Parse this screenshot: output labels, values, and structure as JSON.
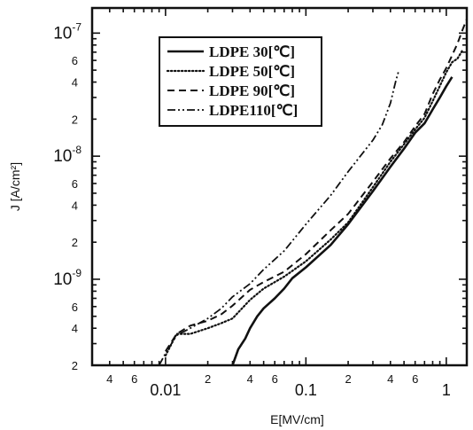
{
  "chart_data": {
    "type": "line",
    "x_scale": "log",
    "y_scale": "log",
    "xlim": [
      0.003,
      1.4
    ],
    "ylim": [
      2e-10,
      1.6e-07
    ],
    "xlabel": "E[MV/cm]",
    "ylabel": "J [A/cm²]",
    "legend_position": "top-left",
    "grid": false,
    "x_ticks": [
      {
        "value": 0.004,
        "label": "4"
      },
      {
        "value": 0.006,
        "label": "6"
      },
      {
        "value": 0.01,
        "label": "0.01"
      },
      {
        "value": 0.02,
        "label": "2"
      },
      {
        "value": 0.04,
        "label": "4"
      },
      {
        "value": 0.06,
        "label": "6"
      },
      {
        "value": 0.1,
        "label": "0.1"
      },
      {
        "value": 0.2,
        "label": "2"
      },
      {
        "value": 0.4,
        "label": "4"
      },
      {
        "value": 0.6,
        "label": "6"
      },
      {
        "value": 1,
        "label": "1"
      }
    ],
    "y_ticks": [
      {
        "value": 2e-10,
        "label": "2",
        "sup": ""
      },
      {
        "value": 4e-10,
        "label": "4",
        "sup": ""
      },
      {
        "value": 6e-10,
        "label": "6",
        "sup": ""
      },
      {
        "value": 1e-09,
        "label": "10",
        "sup": "-9"
      },
      {
        "value": 2e-09,
        "label": "2",
        "sup": ""
      },
      {
        "value": 4e-09,
        "label": "4",
        "sup": ""
      },
      {
        "value": 6e-09,
        "label": "6",
        "sup": ""
      },
      {
        "value": 1e-08,
        "label": "10",
        "sup": "-8"
      },
      {
        "value": 2e-08,
        "label": "2",
        "sup": ""
      },
      {
        "value": 4e-08,
        "label": "4",
        "sup": ""
      },
      {
        "value": 6e-08,
        "label": "6",
        "sup": ""
      },
      {
        "value": 1e-07,
        "label": "10",
        "sup": "-7"
      }
    ],
    "series": [
      {
        "name": "LDPE 30[℃]",
        "dash": "solid",
        "points": [
          [
            0.03,
            2e-10
          ],
          [
            0.033,
            2.7e-10
          ],
          [
            0.037,
            3.3e-10
          ],
          [
            0.04,
            4e-10
          ],
          [
            0.045,
            5e-10
          ],
          [
            0.05,
            5.8e-10
          ],
          [
            0.06,
            7e-10
          ],
          [
            0.07,
            8.4e-10
          ],
          [
            0.08,
            1.02e-09
          ],
          [
            0.1,
            1.25e-09
          ],
          [
            0.15,
            1.9e-09
          ],
          [
            0.2,
            2.8e-09
          ],
          [
            0.3,
            5.2e-09
          ],
          [
            0.4,
            8.2e-09
          ],
          [
            0.5,
            1.15e-08
          ],
          [
            0.6,
            1.55e-08
          ],
          [
            0.7,
            1.85e-08
          ],
          [
            0.8,
            2.4e-08
          ],
          [
            0.9,
            3e-08
          ],
          [
            1.0,
            3.7e-08
          ],
          [
            1.1,
            4.4e-08
          ]
        ]
      },
      {
        "name": "LDPE 50[℃]",
        "dash": "dotted",
        "points": [
          [
            0.01,
            2.4e-10
          ],
          [
            0.012,
            3.6e-10
          ],
          [
            0.015,
            3.6e-10
          ],
          [
            0.02,
            4e-10
          ],
          [
            0.025,
            4.4e-10
          ],
          [
            0.03,
            4.8e-10
          ],
          [
            0.04,
            6.8e-10
          ],
          [
            0.05,
            8.4e-10
          ],
          [
            0.07,
            1.05e-09
          ],
          [
            0.1,
            1.4e-09
          ],
          [
            0.15,
            2.1e-09
          ],
          [
            0.2,
            2.9e-09
          ],
          [
            0.3,
            5.6e-09
          ],
          [
            0.4,
            9e-09
          ],
          [
            0.5,
            1.25e-08
          ],
          [
            0.6,
            1.65e-08
          ],
          [
            0.7,
            2.05e-08
          ],
          [
            0.8,
            2.8e-08
          ],
          [
            1.0,
            4.8e-08
          ],
          [
            1.1,
            5.8e-08
          ],
          [
            1.2,
            6.2e-08
          ],
          [
            1.3,
            7.2e-08
          ]
        ]
      },
      {
        "name": "LDPE 90[℃]",
        "dash": "dashed",
        "points": [
          [
            0.01,
            2.6e-10
          ],
          [
            0.012,
            3.6e-10
          ],
          [
            0.015,
            4.2e-10
          ],
          [
            0.02,
            4.6e-10
          ],
          [
            0.025,
            5.2e-10
          ],
          [
            0.03,
            6.1e-10
          ],
          [
            0.04,
            8.2e-10
          ],
          [
            0.05,
            9.5e-10
          ],
          [
            0.07,
            1.15e-09
          ],
          [
            0.1,
            1.6e-09
          ],
          [
            0.15,
            2.5e-09
          ],
          [
            0.2,
            3.4e-09
          ],
          [
            0.3,
            6.2e-09
          ],
          [
            0.4,
            9.6e-09
          ],
          [
            0.5,
            1.3e-08
          ],
          [
            0.6,
            1.75e-08
          ],
          [
            0.7,
            2.2e-08
          ],
          [
            0.8,
            3.2e-08
          ],
          [
            0.9,
            4.2e-08
          ],
          [
            1.0,
            5.2e-08
          ],
          [
            1.1,
            6.6e-08
          ],
          [
            1.2,
            8.2e-08
          ],
          [
            1.3,
            1.05e-07
          ],
          [
            1.4,
            1.3e-07
          ]
        ]
      },
      {
        "name": "LDPE110[℃]",
        "dash": "dashdot",
        "points": [
          [
            0.009,
            2e-10
          ],
          [
            0.01,
            2.5e-10
          ],
          [
            0.012,
            3.5e-10
          ],
          [
            0.015,
            4e-10
          ],
          [
            0.02,
            4.8e-10
          ],
          [
            0.025,
            5.8e-10
          ],
          [
            0.03,
            7.2e-10
          ],
          [
            0.04,
            9.2e-10
          ],
          [
            0.05,
            1.2e-09
          ],
          [
            0.07,
            1.7e-09
          ],
          [
            0.1,
            2.8e-09
          ],
          [
            0.15,
            4.8e-09
          ],
          [
            0.2,
            7.5e-09
          ],
          [
            0.3,
            1.35e-08
          ],
          [
            0.35,
            1.8e-08
          ],
          [
            0.4,
            2.7e-08
          ],
          [
            0.42,
            3.4e-08
          ],
          [
            0.44,
            4.2e-08
          ],
          [
            0.46,
            5e-08
          ]
        ]
      }
    ]
  }
}
